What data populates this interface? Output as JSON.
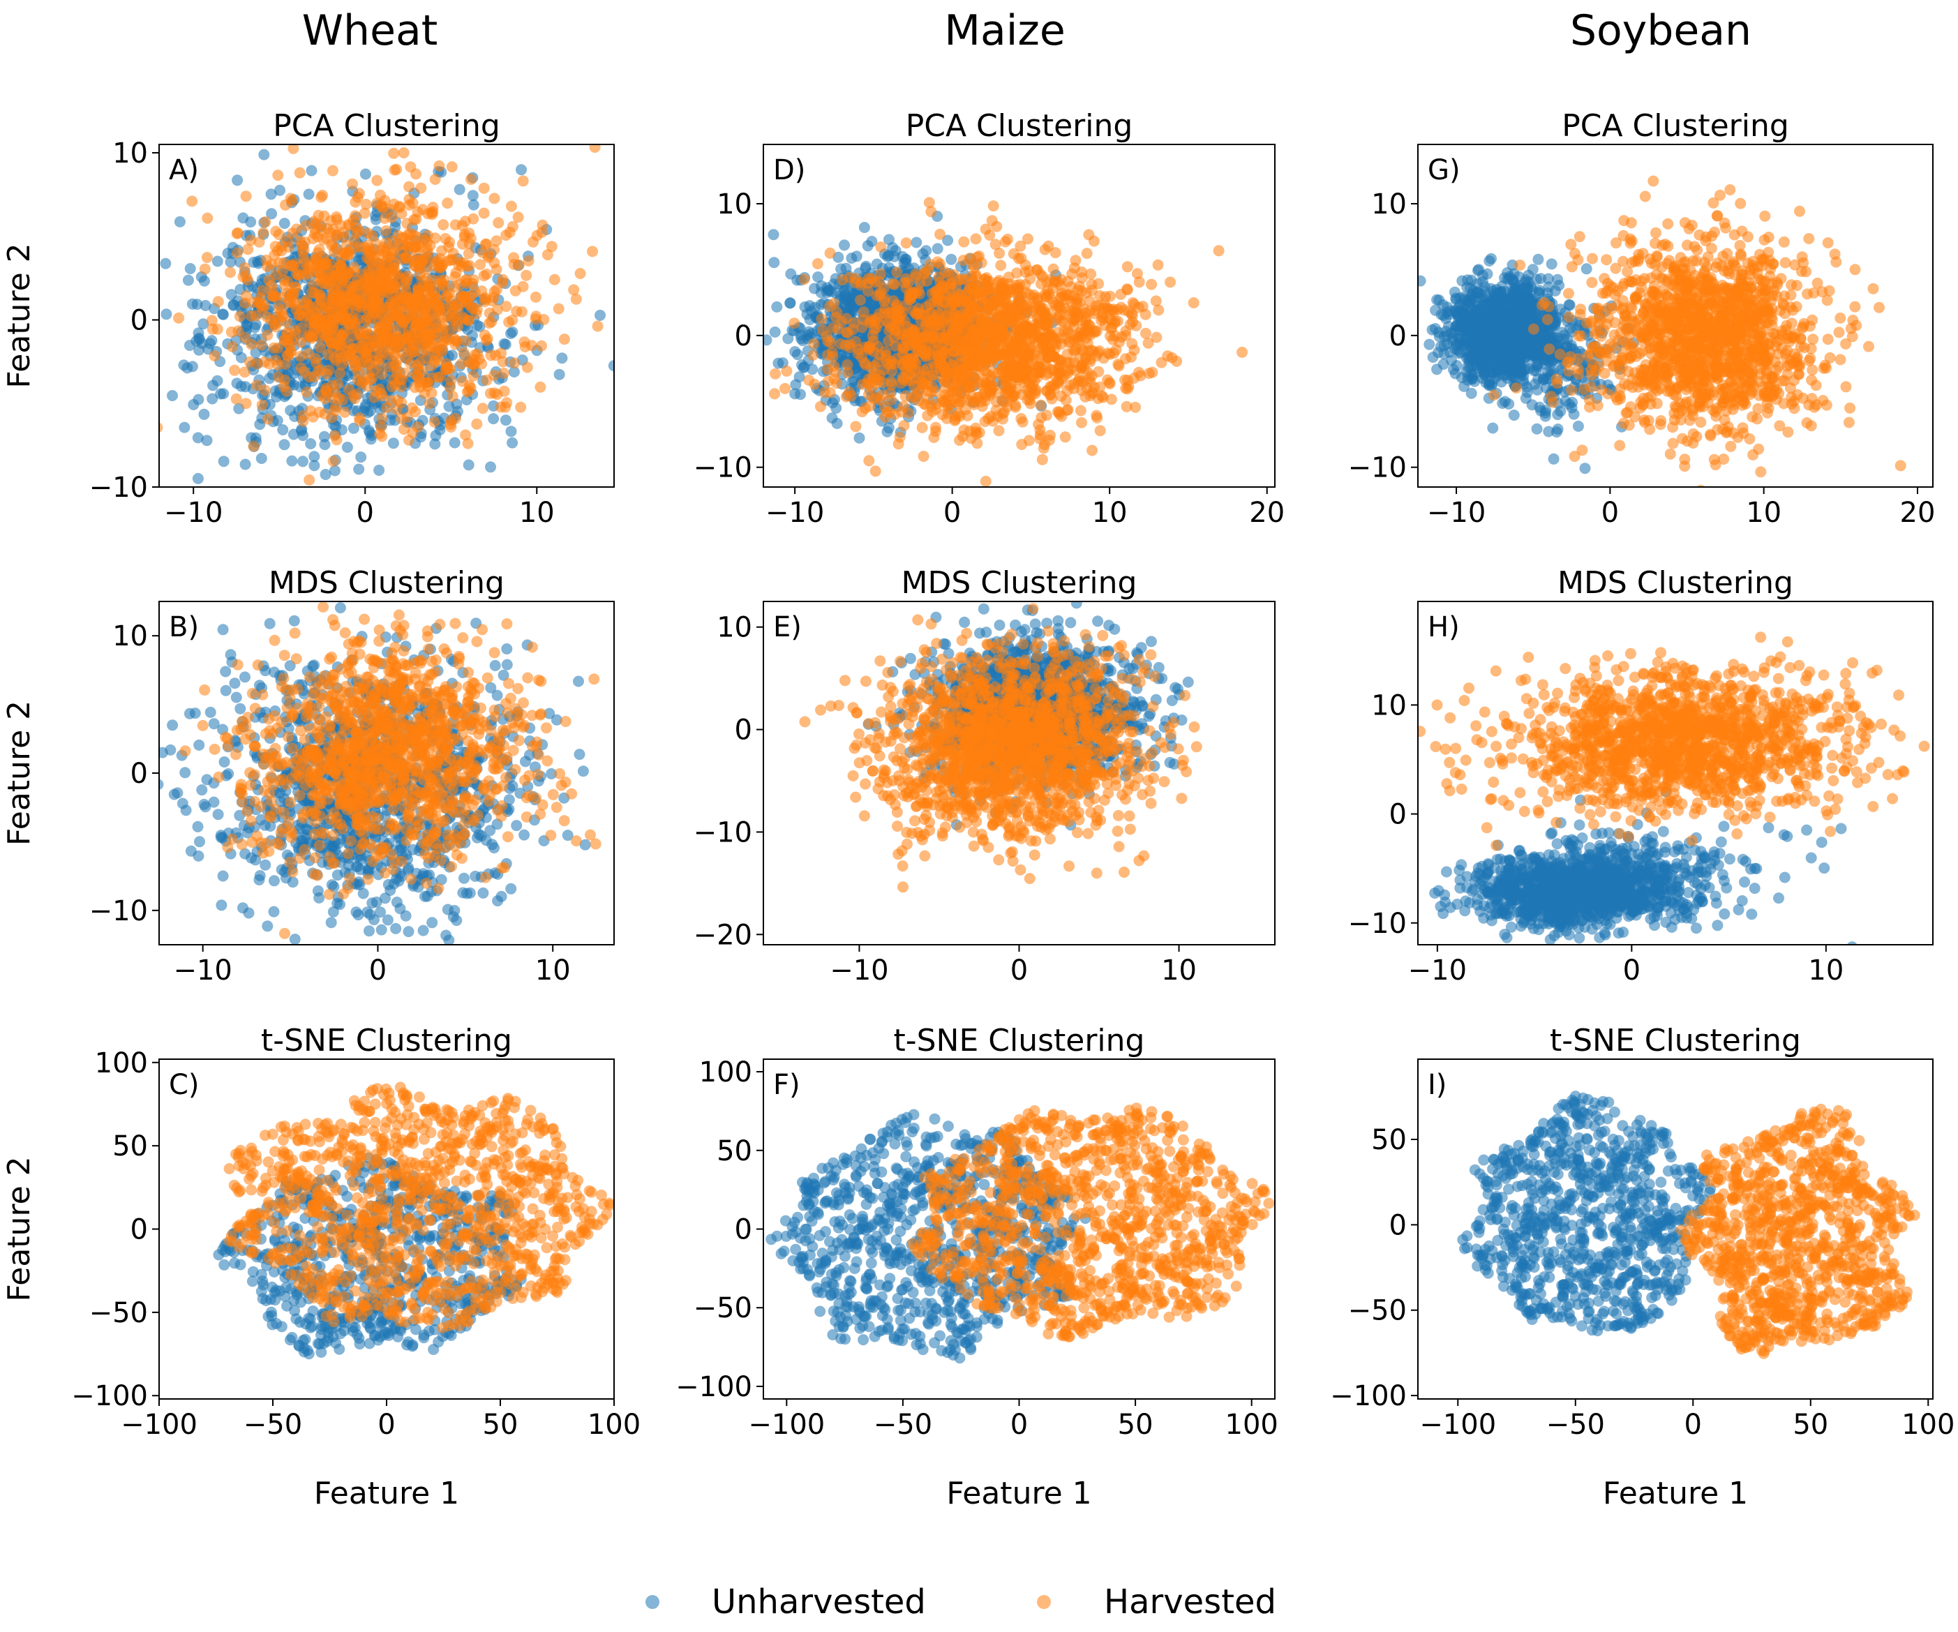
{
  "columns": [
    "Wheat",
    "Maize",
    "Soybean"
  ],
  "legend": [
    {
      "label": "Unharvested",
      "color": "#1f77b4"
    },
    {
      "label": "Harvested",
      "color": "#ff7f0e"
    }
  ],
  "chart_data": [
    {
      "id": "A",
      "letter": "A)",
      "type": "scatter",
      "crop": "Wheat",
      "title": "PCA Clustering",
      "xlabel": "",
      "ylabel": "Feature 2",
      "xlim": [
        -12,
        14.5
      ],
      "ylim": [
        -10,
        10.5
      ],
      "xticks": [
        -10,
        0,
        10
      ],
      "yticks": [
        -10,
        0,
        10
      ],
      "series": [
        {
          "name": "Unharvested",
          "clusters": [
            {
              "cx": -1,
              "cy": -0.5,
              "sx": 4.2,
              "sy": 3.6,
              "n": 1100
            }
          ]
        },
        {
          "name": "Harvested",
          "clusters": [
            {
              "cx": 1,
              "cy": 0.8,
              "sx": 4.0,
              "sy": 3.4,
              "n": 1200
            }
          ]
        }
      ]
    },
    {
      "id": "B",
      "letter": "B)",
      "type": "scatter",
      "crop": "Wheat",
      "title": "MDS Clustering",
      "xlabel": "",
      "ylabel": "Feature 2",
      "xlim": [
        -12.5,
        13.5
      ],
      "ylim": [
        -12.5,
        12.5
      ],
      "xticks": [
        -10,
        0,
        10
      ],
      "yticks": [
        -10,
        0,
        10
      ],
      "series": [
        {
          "name": "Unharvested",
          "clusters": [
            {
              "cx": -0.5,
              "cy": -1,
              "sx": 4.3,
              "sy": 4.3,
              "n": 1100
            }
          ]
        },
        {
          "name": "Harvested",
          "clusters": [
            {
              "cx": 0.8,
              "cy": 1.3,
              "sx": 3.9,
              "sy": 3.8,
              "n": 1200
            }
          ]
        }
      ]
    },
    {
      "id": "C",
      "letter": "C)",
      "type": "scatter",
      "crop": "Wheat",
      "title": "t-SNE Clustering",
      "xlabel": "Feature 1",
      "ylabel": "Feature 2",
      "xlim": [
        -100,
        100
      ],
      "ylim": [
        -102,
        102
      ],
      "xticks": [
        -100,
        -50,
        0,
        50,
        100
      ],
      "yticks": [
        -100,
        -50,
        0,
        50,
        100
      ],
      "series": [
        {
          "name": "Unharvested",
          "clusters": [
            {
              "cx": -5,
              "cy": -18,
              "sx": 36,
              "sy": 32,
              "n": 700
            }
          ]
        },
        {
          "name": "Harvested",
          "clusters": [
            {
              "cx": 12,
              "cy": 12,
              "sx": 46,
              "sy": 40,
              "n": 1050
            }
          ]
        }
      ]
    },
    {
      "id": "D",
      "letter": "D)",
      "type": "scatter",
      "crop": "Maize",
      "title": "PCA Clustering",
      "xlabel": "",
      "ylabel": "",
      "xlim": [
        -12,
        20.5
      ],
      "ylim": [
        -11.5,
        14.5
      ],
      "xticks": [
        -10,
        0,
        10,
        20
      ],
      "yticks": [
        -10,
        0,
        10
      ],
      "series": [
        {
          "name": "Unharvested",
          "clusters": [
            {
              "cx": -3.5,
              "cy": 0.5,
              "sx": 2.8,
              "sy": 2.6,
              "n": 1200
            }
          ]
        },
        {
          "name": "Harvested",
          "clusters": [
            {
              "cx": 2,
              "cy": -0.5,
              "sx": 4.6,
              "sy": 3.2,
              "n": 1500
            }
          ]
        }
      ]
    },
    {
      "id": "E",
      "letter": "E)",
      "type": "scatter",
      "crop": "Maize",
      "title": "MDS Clustering",
      "xlabel": "",
      "ylabel": "",
      "xlim": [
        -16,
        16
      ],
      "ylim": [
        -21,
        12.5
      ],
      "xticks": [
        -10,
        0,
        10
      ],
      "yticks": [
        -20,
        -10,
        0,
        10
      ],
      "series": [
        {
          "name": "Unharvested",
          "clusters": [
            {
              "cx": 1,
              "cy": 2,
              "sx": 3.3,
              "sy": 3.3,
              "n": 1300
            }
          ]
        },
        {
          "name": "Harvested",
          "clusters": [
            {
              "cx": -0.5,
              "cy": -1.5,
              "sx": 4.0,
              "sy": 4.4,
              "n": 1500
            }
          ]
        }
      ]
    },
    {
      "id": "F",
      "letter": "F)",
      "type": "scatter",
      "crop": "Maize",
      "title": "t-SNE Clustering",
      "xlabel": "Feature 1",
      "ylabel": "",
      "xlim": [
        -110,
        110
      ],
      "ylim": [
        -108,
        108
      ],
      "xticks": [
        -100,
        -50,
        0,
        50,
        100
      ],
      "yticks": [
        -100,
        -50,
        0,
        50,
        100
      ],
      "series": [
        {
          "name": "Unharvested",
          "clusters": [
            {
              "cx": -38,
              "cy": -5,
              "sx": 36,
              "sy": 42,
              "n": 850
            }
          ]
        },
        {
          "name": "Harvested",
          "clusters": [
            {
              "cx": 30,
              "cy": 5,
              "sx": 42,
              "sy": 40,
              "n": 1100
            }
          ]
        }
      ]
    },
    {
      "id": "G",
      "letter": "G)",
      "type": "scatter",
      "crop": "Soybean",
      "title": "PCA Clustering",
      "xlabel": "",
      "ylabel": "",
      "xlim": [
        -12.5,
        21
      ],
      "ylim": [
        -11.5,
        14.5
      ],
      "xticks": [
        -10,
        0,
        10,
        20
      ],
      "yticks": [
        -10,
        0,
        10
      ],
      "series": [
        {
          "name": "Unharvested",
          "clusters": [
            {
              "cx": -7,
              "cy": 0.3,
              "sx": 1.8,
              "sy": 1.8,
              "n": 1100
            },
            {
              "cx": -3.2,
              "cy": -1.8,
              "sx": 2.2,
              "sy": 2.6,
              "n": 200
            }
          ]
        },
        {
          "name": "Harvested",
          "clusters": [
            {
              "cx": 6,
              "cy": 0,
              "sx": 3.8,
              "sy": 3.5,
              "n": 1400
            }
          ]
        }
      ]
    },
    {
      "id": "H",
      "letter": "H)",
      "type": "scatter",
      "crop": "Soybean",
      "title": "MDS Clustering",
      "xlabel": "",
      "ylabel": "",
      "xlim": [
        -11,
        15.5
      ],
      "ylim": [
        -12,
        19.5
      ],
      "xticks": [
        -10,
        0,
        10
      ],
      "yticks": [
        -10,
        0,
        10
      ],
      "series": [
        {
          "name": "Unharvested",
          "clusters": [
            {
              "cx": -3,
              "cy": -7,
              "sx": 2.6,
              "sy": 1.7,
              "n": 1100
            },
            {
              "cx": 1,
              "cy": -5,
              "sx": 3.5,
              "sy": 2,
              "n": 200
            }
          ]
        },
        {
          "name": "Harvested",
          "clusters": [
            {
              "cx": 2.5,
              "cy": 6.5,
              "sx": 4.4,
              "sy": 3.2,
              "n": 1400
            }
          ]
        }
      ]
    },
    {
      "id": "I",
      "letter": "I)",
      "type": "scatter",
      "crop": "Soybean",
      "title": "t-SNE Clustering",
      "xlabel": "Feature 1",
      "ylabel": "",
      "xlim": [
        -117,
        102
      ],
      "ylim": [
        -102,
        97
      ],
      "xticks": [
        -100,
        -50,
        0,
        50,
        100
      ],
      "yticks": [
        -100,
        -50,
        0,
        50
      ],
      "series": [
        {
          "name": "Unharvested",
          "clusters": [
            {
              "cx": -45,
              "cy": 5,
              "sx": 28,
              "sy": 38,
              "n": 850
            }
          ]
        },
        {
          "name": "Harvested",
          "clusters": [
            {
              "cx": 45,
              "cy": -5,
              "sx": 26,
              "sy": 40,
              "n": 1000
            }
          ]
        }
      ]
    }
  ]
}
